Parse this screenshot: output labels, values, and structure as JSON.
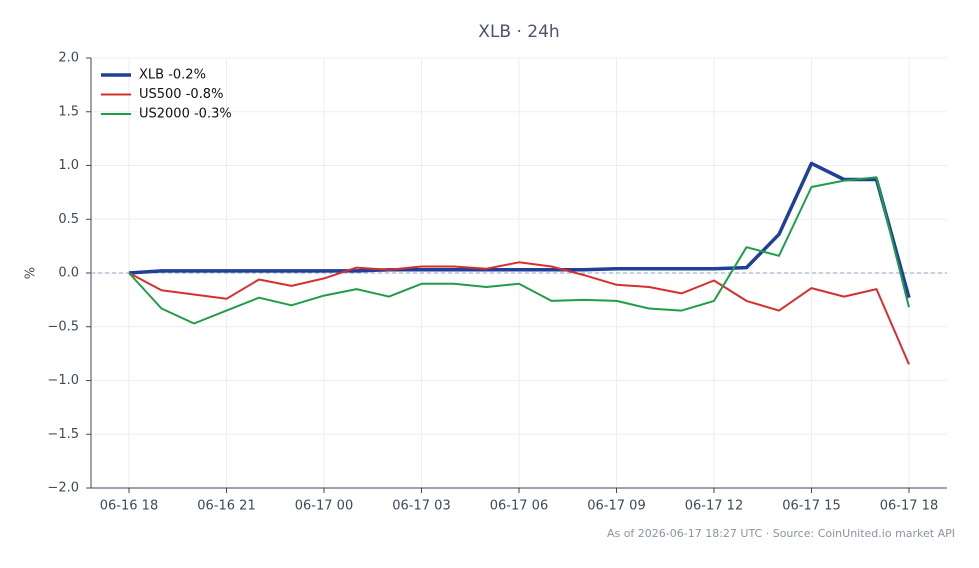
{
  "chart_data": {
    "type": "line",
    "title": "XLB · 24h",
    "ylabel": "%",
    "footer": "As of 2026-06-17 18:27 UTC · Source: CoinUnited.io market API",
    "categories": [
      "06-16 18",
      null,
      null,
      "06-16 21",
      null,
      null,
      "06-17 00",
      null,
      null,
      "06-17 03",
      null,
      null,
      "06-17 06",
      null,
      null,
      "06-17 09",
      null,
      null,
      "06-17 12",
      null,
      null,
      "06-17 15",
      null,
      null,
      "06-17 18"
    ],
    "series": [
      {
        "name": "XLB -0.2%",
        "color": "#1f3f99",
        "width": 3.5,
        "values": [
          0,
          0.02,
          0.02,
          0.02,
          0.02,
          0.02,
          0.02,
          0.02,
          0.03,
          0.03,
          0.03,
          0.03,
          0.03,
          0.03,
          0.03,
          0.04,
          0.04,
          0.04,
          0.04,
          0.05,
          0.36,
          1.02,
          0.87,
          0.87,
          -0.23
        ]
      },
      {
        "name": "US500 -0.8%",
        "color": "#d62f2f",
        "width": 2,
        "values": [
          0,
          -0.16,
          -0.2,
          -0.24,
          -0.06,
          -0.12,
          -0.05,
          0.05,
          0.03,
          0.06,
          0.06,
          0.04,
          0.1,
          0.06,
          -0.02,
          -0.11,
          -0.13,
          -0.19,
          -0.07,
          -0.26,
          -0.35,
          -0.14,
          -0.22,
          -0.15,
          -0.85
        ]
      },
      {
        "name": "US2000 -0.3%",
        "color": "#1f9e4a",
        "width": 2,
        "values": [
          0,
          -0.33,
          -0.47,
          -0.35,
          -0.23,
          -0.3,
          -0.21,
          -0.15,
          -0.22,
          -0.1,
          -0.1,
          -0.13,
          -0.1,
          -0.26,
          -0.25,
          -0.26,
          -0.33,
          -0.35,
          -0.26,
          0.24,
          0.16,
          0.8,
          0.86,
          0.89,
          -0.32
        ]
      }
    ],
    "ylim": [
      -2,
      2
    ],
    "yticks": [
      {
        "value": -2,
        "label": "−2.0"
      },
      {
        "value": -1.5,
        "label": "−1.5"
      },
      {
        "value": -1,
        "label": "−1.0"
      },
      {
        "value": -0.5,
        "label": "−0.5"
      },
      {
        "value": 0,
        "label": "0.0"
      },
      {
        "value": 0.5,
        "label": "0.5"
      },
      {
        "value": 1,
        "label": "1.0"
      },
      {
        "value": 1.5,
        "label": "1.5"
      },
      {
        "value": 2,
        "label": "2.0"
      }
    ],
    "grid": true,
    "legend": "upper left"
  }
}
